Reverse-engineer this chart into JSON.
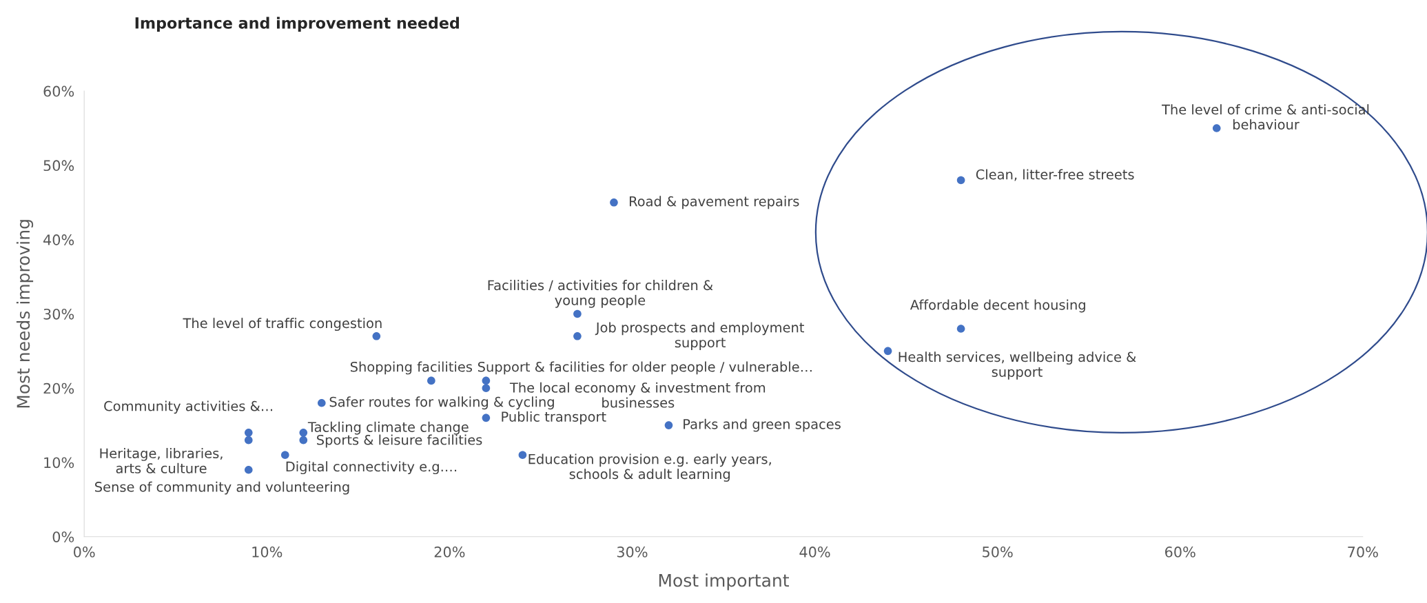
{
  "chart_data": {
    "type": "scatter",
    "title": "Importance and improvement needed",
    "xlabel": "Most important",
    "ylabel": "Most needs improving",
    "xlim": [
      0,
      70
    ],
    "ylim": [
      0,
      60
    ],
    "xticks": [
      {
        "value": 0,
        "label": "0%"
      },
      {
        "value": 10,
        "label": "10%"
      },
      {
        "value": 20,
        "label": "20%"
      },
      {
        "value": 30,
        "label": "30%"
      },
      {
        "value": 40,
        "label": "40%"
      },
      {
        "value": 50,
        "label": "50%"
      },
      {
        "value": 60,
        "label": "60%"
      },
      {
        "value": 70,
        "label": "70%"
      }
    ],
    "yticks": [
      {
        "value": 0,
        "label": "0%"
      },
      {
        "value": 10,
        "label": "10%"
      },
      {
        "value": 20,
        "label": "20%"
      },
      {
        "value": 30,
        "label": "30%"
      },
      {
        "value": 40,
        "label": "40%"
      },
      {
        "value": 50,
        "label": "50%"
      },
      {
        "value": 60,
        "label": "60%"
      }
    ],
    "grid": false,
    "legend": false,
    "marker": "circle",
    "series": [
      {
        "color": "#4472c4",
        "x": [
          62,
          48,
          29,
          27,
          27,
          16,
          48,
          44,
          19,
          22,
          22,
          13,
          22,
          32,
          9,
          9,
          9,
          12,
          12,
          11,
          24
        ],
        "values": [
          55,
          48,
          45,
          30,
          27,
          27,
          28,
          25,
          21,
          21,
          20,
          18,
          16,
          15,
          14,
          13,
          9,
          14,
          13,
          11,
          11
        ]
      }
    ],
    "annotations": [
      {
        "text": "The level of crime & anti-social\nbehaviour",
        "x": 62,
        "y": 55
      },
      {
        "text": "Clean, litter-free streets",
        "x": 48,
        "y": 48
      },
      {
        "text": "Road & pavement repairs",
        "x": 29,
        "y": 45
      },
      {
        "text": "Facilities / activities for children &\nyoung people",
        "x": 27,
        "y": 30
      },
      {
        "text": "Job prospects and employment\nsupport",
        "x": 27,
        "y": 27
      },
      {
        "text": "The level of traffic congestion",
        "x": 16,
        "y": 27
      },
      {
        "text": "Affordable decent housing",
        "x": 48,
        "y": 28
      },
      {
        "text": "Health services, wellbeing advice &\nsupport",
        "x": 44,
        "y": 25
      },
      {
        "text": "Shopping facilities",
        "x": 19,
        "y": 21
      },
      {
        "text": "Support & facilities for older people / vulnerable…",
        "x": 22,
        "y": 21
      },
      {
        "text": "The local economy & investment from\nbusinesses",
        "x": 22,
        "y": 20
      },
      {
        "text": "Safer routes for walking & cycling",
        "x": 13,
        "y": 18
      },
      {
        "text": "Public transport",
        "x": 22,
        "y": 16
      },
      {
        "text": "Parks and green spaces",
        "x": 32,
        "y": 15
      },
      {
        "text": "Community activities &…",
        "x": 9,
        "y": 14
      },
      {
        "text": "Heritage, libraries,\narts & culture",
        "x": 9,
        "y": 13
      },
      {
        "text": "Sense of community and volunteering",
        "x": 9,
        "y": 9
      },
      {
        "text": "Tackling climate change",
        "x": 12,
        "y": 14
      },
      {
        "text": "Sports & leisure facilities",
        "x": 12,
        "y": 13
      },
      {
        "text": "Digital connectivity e.g.…",
        "x": 11,
        "y": 11
      },
      {
        "text": "Education provision e.g. early years,\nschools & adult learning",
        "x": 24,
        "y": 11
      }
    ]
  }
}
